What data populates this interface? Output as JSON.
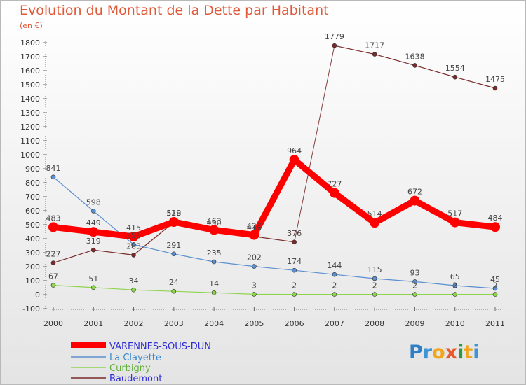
{
  "header": {
    "title": "Evolution du Montant de la Dette par Habitant",
    "unit": "(en €)"
  },
  "logo": {
    "text": "Proxiti"
  },
  "chart_data": {
    "type": "line",
    "title": "Evolution du Montant de la Dette par Habitant",
    "subtitle": "(en €)",
    "x": [
      "2000",
      "2001",
      "2002",
      "2003",
      "2004",
      "2005",
      "2006",
      "2007",
      "2008",
      "2009",
      "2010",
      "2011"
    ],
    "ylim": [
      -100,
      1800
    ],
    "yticks": [
      -100,
      0,
      100,
      200,
      300,
      400,
      500,
      600,
      700,
      800,
      900,
      1000,
      1100,
      1200,
      1300,
      1400,
      1500,
      1600,
      1700,
      1800
    ],
    "grid": false,
    "legend_position": "bottom-left",
    "series": [
      {
        "name": "VARENNES-SOUS-DUN",
        "color": "#ff0000",
        "legend_color": "#2d2dd6",
        "values": [
          483,
          449,
          415,
          520,
          463,
          427,
          964,
          727,
          514,
          672,
          517,
          484
        ],
        "labels": [
          "483",
          "449",
          "415",
          "520",
          "463",
          "427",
          "964",
          "727",
          "514",
          "672",
          "517",
          "484"
        ]
      },
      {
        "name": "La Clayette",
        "color": "#5b8fd0",
        "legend_color": "#3a8ad1",
        "values": [
          841,
          598,
          358,
          291,
          235,
          202,
          174,
          144,
          115,
          93,
          65,
          45
        ],
        "labels": [
          "841",
          "598",
          "358",
          "291",
          "235",
          "202",
          "174",
          "144",
          "115",
          "93",
          "65",
          "45"
        ]
      },
      {
        "name": "Curbigny",
        "color": "#8fd44f",
        "legend_color": "#60b03a",
        "values": [
          67,
          51,
          34,
          24,
          14,
          3,
          2,
          2,
          2,
          2,
          2,
          2
        ],
        "labels": [
          "67",
          "51",
          "34",
          "24",
          "14",
          "3",
          "2",
          "2",
          "2",
          "2",
          "2",
          "2"
        ]
      },
      {
        "name": "Baudemont",
        "color": "#7a2a2a",
        "legend_color": "#2d2dd6",
        "segments": [
          [
            0,
            6
          ],
          [
            7,
            11
          ]
        ],
        "connector": [
          6,
          7
        ],
        "values": [
          227,
          319,
          283,
          518,
          450,
          416,
          376,
          1779,
          1717,
          1638,
          1554,
          1475
        ],
        "labels": [
          "227",
          "319",
          "283",
          "518",
          "450",
          "416",
          "376",
          "1779",
          "1717",
          "1638",
          "1554",
          "1475"
        ]
      }
    ]
  }
}
